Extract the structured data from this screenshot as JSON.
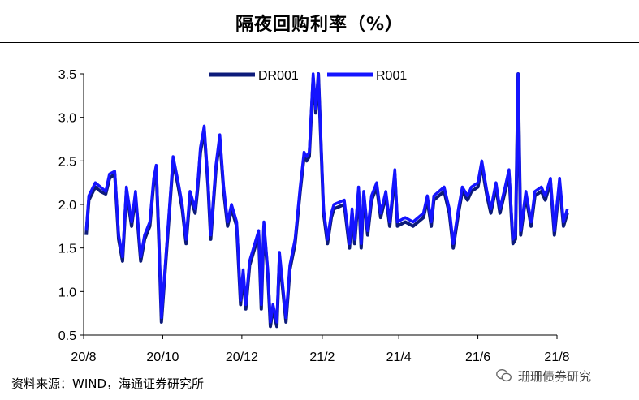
{
  "title": "隔夜回购利率（%）",
  "source": "资料来源：WIND，海通证券研究所",
  "watermark": "珊珊债券研究",
  "colors": {
    "dr001": "#0d1b7a",
    "r001": "#1414ff",
    "axis": "#000000"
  },
  "chart_data": {
    "type": "line",
    "title": "隔夜回购利率（%）",
    "ylim": [
      0.5,
      3.5
    ],
    "yticks": [
      "0.5",
      "1.0",
      "1.5",
      "2.0",
      "2.5",
      "3.0",
      "3.5"
    ],
    "xtick_labels": [
      "20/8",
      "20/10",
      "20/12",
      "21/2",
      "21/4",
      "21/6",
      "21/8"
    ],
    "xtick_dates": [
      "2020-08-01",
      "2020-10-01",
      "2020-12-01",
      "2021-02-01",
      "2021-04-01",
      "2021-06-01",
      "2021-08-01"
    ],
    "legend_position": "top",
    "series": [
      {
        "name": "DR001",
        "points": [
          [
            "2020-08-03",
            1.65
          ],
          [
            "2020-08-05",
            2.05
          ],
          [
            "2020-08-10",
            2.2
          ],
          [
            "2020-08-14",
            2.15
          ],
          [
            "2020-08-18",
            2.12
          ],
          [
            "2020-08-21",
            2.3
          ],
          [
            "2020-08-25",
            2.35
          ],
          [
            "2020-08-28",
            1.6
          ],
          [
            "2020-08-31",
            1.35
          ],
          [
            "2020-09-03",
            2.15
          ],
          [
            "2020-09-07",
            1.75
          ],
          [
            "2020-09-10",
            2.1
          ],
          [
            "2020-09-14",
            1.35
          ],
          [
            "2020-09-17",
            1.6
          ],
          [
            "2020-09-21",
            1.75
          ],
          [
            "2020-09-24",
            2.25
          ],
          [
            "2020-09-26",
            2.4
          ],
          [
            "2020-09-28",
            1.6
          ],
          [
            "2020-09-30",
            0.65
          ],
          [
            "2020-10-09",
            2.5
          ],
          [
            "2020-10-13",
            2.2
          ],
          [
            "2020-10-16",
            1.95
          ],
          [
            "2020-10-19",
            1.55
          ],
          [
            "2020-10-22",
            2.1
          ],
          [
            "2020-10-26",
            1.9
          ],
          [
            "2020-10-28",
            2.2
          ],
          [
            "2020-10-30",
            2.6
          ],
          [
            "2020-11-02",
            2.85
          ],
          [
            "2020-11-05",
            2.2
          ],
          [
            "2020-11-07",
            1.6
          ],
          [
            "2020-11-11",
            2.4
          ],
          [
            "2020-11-14",
            2.75
          ],
          [
            "2020-11-17",
            2.15
          ],
          [
            "2020-11-20",
            1.75
          ],
          [
            "2020-11-23",
            1.95
          ],
          [
            "2020-11-27",
            1.75
          ],
          [
            "2020-11-30",
            0.85
          ],
          [
            "2020-12-02",
            1.2
          ],
          [
            "2020-12-04",
            0.8
          ],
          [
            "2020-12-07",
            1.3
          ],
          [
            "2020-12-10",
            1.45
          ],
          [
            "2020-12-14",
            1.65
          ],
          [
            "2020-12-16",
            0.8
          ],
          [
            "2020-12-18",
            1.75
          ],
          [
            "2020-12-21",
            1.2
          ],
          [
            "2020-12-23",
            0.6
          ],
          [
            "2020-12-25",
            0.8
          ],
          [
            "2020-12-28",
            0.6
          ],
          [
            "2020-12-30",
            1.4
          ],
          [
            "2021-01-04",
            0.65
          ],
          [
            "2021-01-07",
            1.25
          ],
          [
            "2021-01-11",
            1.55
          ],
          [
            "2021-01-15",
            2.15
          ],
          [
            "2021-01-18",
            2.55
          ],
          [
            "2021-01-20",
            2.5
          ],
          [
            "2021-01-22",
            2.55
          ],
          [
            "2021-01-25",
            3.45
          ],
          [
            "2021-01-27",
            3.05
          ],
          [
            "2021-01-29",
            3.5
          ],
          [
            "2021-02-02",
            1.9
          ],
          [
            "2021-02-05",
            1.55
          ],
          [
            "2021-02-08",
            1.85
          ],
          [
            "2021-02-10",
            1.95
          ],
          [
            "2021-02-18",
            2.0
          ],
          [
            "2021-02-22",
            1.5
          ],
          [
            "2021-02-24",
            1.9
          ],
          [
            "2021-02-26",
            1.55
          ],
          [
            "2021-03-01",
            2.15
          ],
          [
            "2021-03-03",
            1.5
          ],
          [
            "2021-03-05",
            2.1
          ],
          [
            "2021-03-08",
            1.65
          ],
          [
            "2021-03-11",
            2.05
          ],
          [
            "2021-03-15",
            2.2
          ],
          [
            "2021-03-18",
            1.85
          ],
          [
            "2021-03-22",
            2.1
          ],
          [
            "2021-03-25",
            1.75
          ],
          [
            "2021-03-29",
            2.35
          ],
          [
            "2021-03-31",
            1.75
          ],
          [
            "2021-04-06",
            1.8
          ],
          [
            "2021-04-12",
            1.75
          ],
          [
            "2021-04-16",
            1.8
          ],
          [
            "2021-04-20",
            1.85
          ],
          [
            "2021-04-23",
            2.05
          ],
          [
            "2021-04-26",
            1.75
          ],
          [
            "2021-04-28",
            2.05
          ],
          [
            "2021-05-06",
            2.15
          ],
          [
            "2021-05-10",
            1.9
          ],
          [
            "2021-05-13",
            1.5
          ],
          [
            "2021-05-17",
            1.9
          ],
          [
            "2021-05-20",
            2.15
          ],
          [
            "2021-05-24",
            2.05
          ],
          [
            "2021-05-27",
            2.15
          ],
          [
            "2021-06-01",
            2.2
          ],
          [
            "2021-06-04",
            2.45
          ],
          [
            "2021-06-08",
            2.1
          ],
          [
            "2021-06-11",
            1.9
          ],
          [
            "2021-06-15",
            2.2
          ],
          [
            "2021-06-18",
            1.9
          ],
          [
            "2021-06-22",
            2.15
          ],
          [
            "2021-06-25",
            2.35
          ],
          [
            "2021-06-28",
            1.55
          ],
          [
            "2021-06-30",
            1.6
          ],
          [
            "2021-07-02",
            3.5
          ],
          [
            "2021-07-04",
            1.65
          ],
          [
            "2021-07-08",
            2.1
          ],
          [
            "2021-07-12",
            1.75
          ],
          [
            "2021-07-15",
            2.1
          ],
          [
            "2021-07-20",
            2.15
          ],
          [
            "2021-07-23",
            2.05
          ],
          [
            "2021-07-27",
            2.25
          ],
          [
            "2021-07-30",
            1.65
          ],
          [
            "2021-08-03",
            2.25
          ],
          [
            "2021-08-06",
            1.75
          ],
          [
            "2021-08-09",
            1.9
          ]
        ]
      },
      {
        "name": "R001",
        "points": [
          [
            "2020-08-03",
            1.7
          ],
          [
            "2020-08-05",
            2.1
          ],
          [
            "2020-08-10",
            2.25
          ],
          [
            "2020-08-14",
            2.2
          ],
          [
            "2020-08-18",
            2.15
          ],
          [
            "2020-08-21",
            2.35
          ],
          [
            "2020-08-25",
            2.38
          ],
          [
            "2020-08-28",
            1.65
          ],
          [
            "2020-08-31",
            1.4
          ],
          [
            "2020-09-03",
            2.2
          ],
          [
            "2020-09-07",
            1.8
          ],
          [
            "2020-09-10",
            2.15
          ],
          [
            "2020-09-14",
            1.4
          ],
          [
            "2020-09-17",
            1.65
          ],
          [
            "2020-09-21",
            1.8
          ],
          [
            "2020-09-24",
            2.3
          ],
          [
            "2020-09-26",
            2.45
          ],
          [
            "2020-09-28",
            1.65
          ],
          [
            "2020-09-30",
            0.7
          ],
          [
            "2020-10-09",
            2.55
          ],
          [
            "2020-10-13",
            2.25
          ],
          [
            "2020-10-16",
            2.0
          ],
          [
            "2020-10-19",
            1.6
          ],
          [
            "2020-10-22",
            2.15
          ],
          [
            "2020-10-26",
            1.95
          ],
          [
            "2020-10-28",
            2.25
          ],
          [
            "2020-10-30",
            2.65
          ],
          [
            "2020-11-02",
            2.9
          ],
          [
            "2020-11-05",
            2.25
          ],
          [
            "2020-11-07",
            1.65
          ],
          [
            "2020-11-11",
            2.45
          ],
          [
            "2020-11-14",
            2.8
          ],
          [
            "2020-11-17",
            2.2
          ],
          [
            "2020-11-20",
            1.8
          ],
          [
            "2020-11-23",
            2.0
          ],
          [
            "2020-11-27",
            1.8
          ],
          [
            "2020-11-30",
            0.9
          ],
          [
            "2020-12-02",
            1.25
          ],
          [
            "2020-12-04",
            0.85
          ],
          [
            "2020-12-07",
            1.35
          ],
          [
            "2020-12-10",
            1.5
          ],
          [
            "2020-12-14",
            1.7
          ],
          [
            "2020-12-16",
            0.85
          ],
          [
            "2020-12-18",
            1.8
          ],
          [
            "2020-12-21",
            1.25
          ],
          [
            "2020-12-23",
            0.65
          ],
          [
            "2020-12-25",
            0.85
          ],
          [
            "2020-12-28",
            0.65
          ],
          [
            "2020-12-30",
            1.45
          ],
          [
            "2021-01-04",
            0.7
          ],
          [
            "2021-01-07",
            1.3
          ],
          [
            "2021-01-11",
            1.6
          ],
          [
            "2021-01-15",
            2.2
          ],
          [
            "2021-01-18",
            2.6
          ],
          [
            "2021-01-20",
            2.55
          ],
          [
            "2021-01-22",
            2.6
          ],
          [
            "2021-01-25",
            3.5
          ],
          [
            "2021-01-27",
            3.1
          ],
          [
            "2021-01-29",
            3.5
          ],
          [
            "2021-02-02",
            1.95
          ],
          [
            "2021-02-05",
            1.6
          ],
          [
            "2021-02-08",
            1.9
          ],
          [
            "2021-02-10",
            2.0
          ],
          [
            "2021-02-18",
            2.05
          ],
          [
            "2021-02-22",
            1.55
          ],
          [
            "2021-02-24",
            1.95
          ],
          [
            "2021-02-26",
            1.6
          ],
          [
            "2021-03-01",
            2.2
          ],
          [
            "2021-03-03",
            1.55
          ],
          [
            "2021-03-05",
            2.15
          ],
          [
            "2021-03-08",
            1.7
          ],
          [
            "2021-03-11",
            2.1
          ],
          [
            "2021-03-15",
            2.25
          ],
          [
            "2021-03-18",
            1.9
          ],
          [
            "2021-03-22",
            2.15
          ],
          [
            "2021-03-25",
            1.8
          ],
          [
            "2021-03-29",
            2.4
          ],
          [
            "2021-03-31",
            1.8
          ],
          [
            "2021-04-06",
            1.85
          ],
          [
            "2021-04-12",
            1.8
          ],
          [
            "2021-04-16",
            1.85
          ],
          [
            "2021-04-20",
            1.9
          ],
          [
            "2021-04-23",
            2.1
          ],
          [
            "2021-04-26",
            1.8
          ],
          [
            "2021-04-28",
            2.1
          ],
          [
            "2021-05-06",
            2.2
          ],
          [
            "2021-05-10",
            1.95
          ],
          [
            "2021-05-13",
            1.55
          ],
          [
            "2021-05-17",
            1.95
          ],
          [
            "2021-05-20",
            2.2
          ],
          [
            "2021-05-24",
            2.1
          ],
          [
            "2021-05-27",
            2.2
          ],
          [
            "2021-06-01",
            2.25
          ],
          [
            "2021-06-04",
            2.5
          ],
          [
            "2021-06-08",
            2.15
          ],
          [
            "2021-06-11",
            1.95
          ],
          [
            "2021-06-15",
            2.25
          ],
          [
            "2021-06-18",
            1.95
          ],
          [
            "2021-06-22",
            2.2
          ],
          [
            "2021-06-25",
            2.4
          ],
          [
            "2021-06-28",
            1.6
          ],
          [
            "2021-06-30",
            1.65
          ],
          [
            "2021-07-02",
            3.5
          ],
          [
            "2021-07-04",
            1.7
          ],
          [
            "2021-07-08",
            2.15
          ],
          [
            "2021-07-12",
            1.8
          ],
          [
            "2021-07-15",
            2.15
          ],
          [
            "2021-07-20",
            2.2
          ],
          [
            "2021-07-23",
            2.1
          ],
          [
            "2021-07-27",
            2.3
          ],
          [
            "2021-07-30",
            1.7
          ],
          [
            "2021-08-03",
            2.3
          ],
          [
            "2021-08-06",
            1.8
          ],
          [
            "2021-08-09",
            1.95
          ]
        ]
      }
    ]
  }
}
